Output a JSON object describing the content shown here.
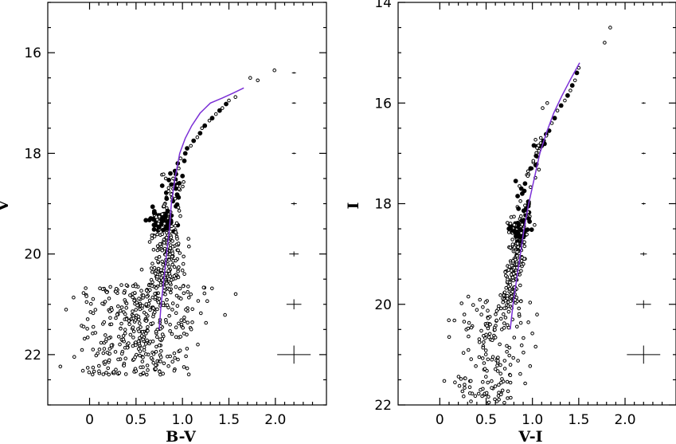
{
  "colors": {
    "isochrone": "#7b2fd6",
    "points": "#000000",
    "background": "#ffffff"
  },
  "chart_data": [
    {
      "type": "scatter",
      "xlabel": "B-V",
      "ylabel": "V",
      "xlim": [
        -0.45,
        2.55
      ],
      "ylim": [
        23.0,
        15.0
      ],
      "x_inverted": false,
      "y_inverted": true,
      "xticks": [
        0,
        0.5,
        1.0,
        1.5,
        2.0
      ],
      "xtick_labels": [
        "0",
        "0.5",
        "1.0",
        "1.5",
        "2.0"
      ],
      "yticks": [
        16,
        18,
        20,
        22
      ],
      "ytick_labels": [
        "16",
        "18",
        "20",
        "22"
      ],
      "grid": false,
      "legend": "none",
      "isochrone": {
        "x": [
          0.75,
          0.77,
          0.8,
          0.83,
          0.86,
          0.88,
          0.92,
          0.97,
          1.03,
          1.1,
          1.19,
          1.3,
          1.43,
          1.55,
          1.66
        ],
        "y": [
          21.5,
          21.0,
          20.5,
          20.0,
          19.5,
          19.0,
          18.5,
          18.0,
          17.7,
          17.45,
          17.2,
          17.0,
          16.9,
          16.8,
          16.7
        ]
      },
      "clump": {
        "x_center": 0.76,
        "y_center": 19.35,
        "x_sigma": 0.07,
        "y_sigma": 0.1,
        "count": 70
      },
      "bright_points": {
        "x": [
          1.57,
          1.5,
          1.47,
          1.43,
          1.4,
          1.36,
          1.32,
          1.29,
          1.24,
          1.21,
          1.19,
          1.16,
          1.12,
          1.09,
          1.05,
          1.03,
          0.98,
          0.95,
          0.92,
          0.9,
          0.88,
          0.85,
          0.83,
          0.8,
          1.0,
          0.96,
          1.02,
          0.87,
          0.82,
          0.93,
          1.73,
          1.81,
          1.99
        ],
        "y": [
          16.88,
          16.95,
          17.02,
          17.1,
          17.15,
          17.22,
          17.3,
          17.35,
          17.45,
          17.5,
          17.6,
          17.68,
          17.75,
          17.85,
          17.9,
          18.0,
          18.1,
          18.2,
          18.35,
          18.5,
          18.62,
          18.75,
          18.9,
          19.05,
          18.45,
          18.3,
          18.15,
          18.4,
          18.5,
          18.7,
          16.5,
          16.55,
          16.35
        ],
        "filled": [
          false,
          false,
          true,
          false,
          true,
          false,
          true,
          false,
          true,
          false,
          true,
          false,
          true,
          false,
          true,
          true,
          false,
          true,
          true,
          false,
          true,
          false,
          true,
          false,
          true,
          false,
          true,
          true,
          false,
          true,
          false,
          false,
          false
        ]
      },
      "error_bars": {
        "x": 2.2,
        "y": [
          16.4,
          17.0,
          18.0,
          19.0,
          20.0,
          21.0,
          22.0
        ],
        "xerr": [
          0.005,
          0.01,
          0.015,
          0.03,
          0.05,
          0.08,
          0.18
        ],
        "yerr": [
          0.005,
          0.01,
          0.015,
          0.03,
          0.05,
          0.1,
          0.18
        ]
      }
    },
    {
      "type": "scatter",
      "xlabel": "V-I",
      "ylabel": "I",
      "xlim": [
        -0.45,
        2.55
      ],
      "ylim": [
        22.0,
        14.0
      ],
      "x_inverted": false,
      "y_inverted": true,
      "xticks": [
        0,
        0.5,
        1.0,
        1.5,
        2.0
      ],
      "xtick_labels": [
        "0",
        "0.5",
        "1.0",
        "1.5",
        "2.0"
      ],
      "yticks": [
        14,
        16,
        18,
        20,
        22
      ],
      "ytick_labels": [
        "14",
        "16",
        "18",
        "20",
        "22"
      ],
      "grid": false,
      "legend": "none",
      "isochrone": {
        "x": [
          0.76,
          0.79,
          0.83,
          0.87,
          0.91,
          0.96,
          1.02,
          1.08,
          1.15,
          1.23,
          1.32,
          1.42,
          1.51
        ],
        "y": [
          20.5,
          20.0,
          19.5,
          19.0,
          18.5,
          18.0,
          17.5,
          17.0,
          16.6,
          16.2,
          15.85,
          15.5,
          15.2
        ]
      },
      "clump": {
        "x_center": 0.84,
        "y_center": 18.5,
        "x_sigma": 0.05,
        "y_sigma": 0.1,
        "count": 70
      },
      "bright_points": {
        "x": [
          1.5,
          1.48,
          1.46,
          1.43,
          1.41,
          1.38,
          1.35,
          1.31,
          1.27,
          1.24,
          1.21,
          1.18,
          1.15,
          1.12,
          1.1,
          1.07,
          1.04,
          1.01,
          0.98,
          0.95,
          0.92,
          0.89,
          0.87,
          0.85,
          0.82,
          0.88,
          0.86,
          0.84,
          1.16,
          1.11,
          1.78,
          1.84
        ],
        "y": [
          15.3,
          15.4,
          15.55,
          15.65,
          15.75,
          15.85,
          15.95,
          16.05,
          16.15,
          16.3,
          16.4,
          16.55,
          16.65,
          16.75,
          16.85,
          16.95,
          17.05,
          17.15,
          17.3,
          17.45,
          17.6,
          17.8,
          17.95,
          18.1,
          17.55,
          17.7,
          17.65,
          17.85,
          16.0,
          16.1,
          14.8,
          14.5
        ],
        "filled": [
          false,
          true,
          false,
          true,
          false,
          true,
          false,
          true,
          false,
          true,
          false,
          true,
          false,
          true,
          true,
          false,
          true,
          false,
          true,
          false,
          true,
          true,
          false,
          true,
          true,
          true,
          false,
          true,
          false,
          false,
          false,
          false
        ]
      },
      "error_bars": {
        "x": 2.2,
        "y": [
          16.0,
          17.0,
          18.0,
          19.0,
          20.0,
          21.0
        ],
        "xerr": [
          0.01,
          0.015,
          0.02,
          0.035,
          0.08,
          0.18
        ],
        "yerr": [
          0.01,
          0.015,
          0.02,
          0.035,
          0.08,
          0.18
        ]
      }
    }
  ]
}
